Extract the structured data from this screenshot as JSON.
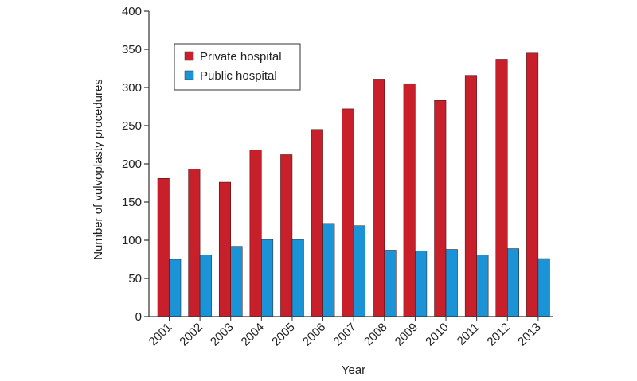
{
  "chart_data": {
    "type": "bar",
    "categories": [
      "2001",
      "2002",
      "2003",
      "2004",
      "2005",
      "2006",
      "2007",
      "2008",
      "2009",
      "2010",
      "2011",
      "2012",
      "2013"
    ],
    "series": [
      {
        "name": "Private hospital",
        "color": "#c8202a",
        "values": [
          181,
          193,
          176,
          218,
          212,
          245,
          272,
          311,
          305,
          283,
          316,
          337,
          345
        ]
      },
      {
        "name": "Public hospital",
        "color": "#1a94d6",
        "values": [
          75,
          81,
          92,
          101,
          101,
          122,
          119,
          87,
          86,
          88,
          81,
          89,
          76
        ]
      }
    ],
    "xlabel": "Year",
    "ylabel": "Number of vulvoplasty procedures",
    "ylim": [
      0,
      400
    ],
    "yticks": [
      0,
      50,
      100,
      150,
      200,
      250,
      300,
      350,
      400
    ],
    "grid": false,
    "legend_position": "top-left"
  }
}
